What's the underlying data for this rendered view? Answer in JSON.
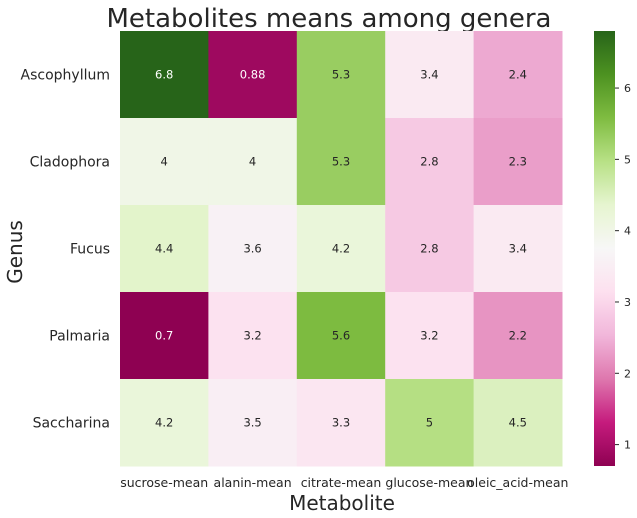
{
  "chart_data": {
    "type": "heatmap",
    "title": "Metabolites means among genera",
    "xlabel": "Metabolite",
    "ylabel": "Genus",
    "rows": [
      "Ascophyllum",
      "Cladophora",
      "Fucus",
      "Palmaria",
      "Saccharina"
    ],
    "columns": [
      "sucrose-mean",
      "alanin-mean",
      "citrate-mean",
      "glucose-mean",
      "oleic_acid-mean"
    ],
    "values": [
      [
        6.8,
        0.88,
        5.3,
        3.4,
        2.4
      ],
      [
        4,
        4,
        5.3,
        2.8,
        2.3
      ],
      [
        4.4,
        3.6,
        4.2,
        2.8,
        3.4
      ],
      [
        0.7,
        3.2,
        5.6,
        3.2,
        2.2
      ],
      [
        4.2,
        3.5,
        3.3,
        5,
        4.5
      ]
    ],
    "colorbar": {
      "colormap": "PiYG",
      "range": [
        0.7,
        6.8
      ],
      "ticks": [
        1,
        2,
        3,
        4,
        5,
        6
      ]
    }
  }
}
